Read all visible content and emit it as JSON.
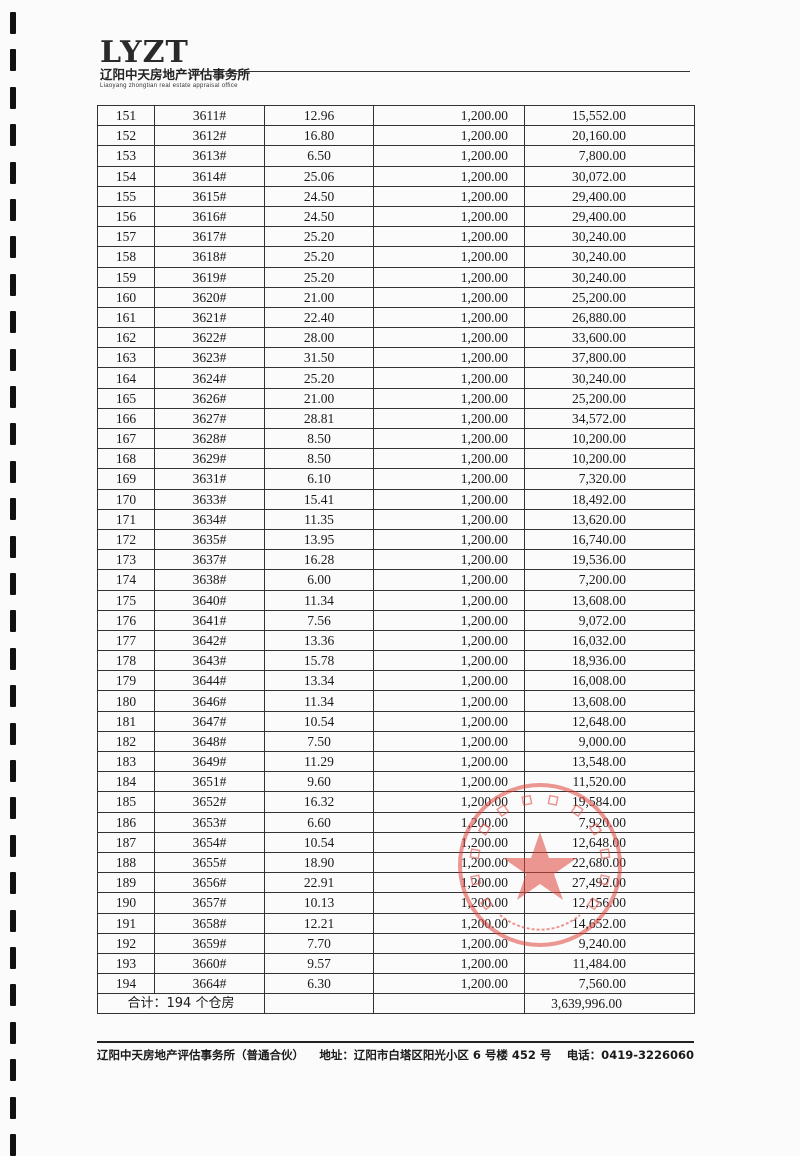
{
  "header": {
    "logo_text": "LYZT",
    "company_cn": "辽阳中天房地产评估事务所",
    "company_en": "Liaoyang zhongtian real estate appraisal office"
  },
  "table": {
    "rows": [
      [
        "151",
        "3611#",
        "12.96",
        "1,200.00",
        "15,552.00"
      ],
      [
        "152",
        "3612#",
        "16.80",
        "1,200.00",
        "20,160.00"
      ],
      [
        "153",
        "3613#",
        "6.50",
        "1,200.00",
        "7,800.00"
      ],
      [
        "154",
        "3614#",
        "25.06",
        "1,200.00",
        "30,072.00"
      ],
      [
        "155",
        "3615#",
        "24.50",
        "1,200.00",
        "29,400.00"
      ],
      [
        "156",
        "3616#",
        "24.50",
        "1,200.00",
        "29,400.00"
      ],
      [
        "157",
        "3617#",
        "25.20",
        "1,200.00",
        "30,240.00"
      ],
      [
        "158",
        "3618#",
        "25.20",
        "1,200.00",
        "30,240.00"
      ],
      [
        "159",
        "3619#",
        "25.20",
        "1,200.00",
        "30,240.00"
      ],
      [
        "160",
        "3620#",
        "21.00",
        "1,200.00",
        "25,200.00"
      ],
      [
        "161",
        "3621#",
        "22.40",
        "1,200.00",
        "26,880.00"
      ],
      [
        "162",
        "3622#",
        "28.00",
        "1,200.00",
        "33,600.00"
      ],
      [
        "163",
        "3623#",
        "31.50",
        "1,200.00",
        "37,800.00"
      ],
      [
        "164",
        "3624#",
        "25.20",
        "1,200.00",
        "30,240.00"
      ],
      [
        "165",
        "3626#",
        "21.00",
        "1,200.00",
        "25,200.00"
      ],
      [
        "166",
        "3627#",
        "28.81",
        "1,200.00",
        "34,572.00"
      ],
      [
        "167",
        "3628#",
        "8.50",
        "1,200.00",
        "10,200.00"
      ],
      [
        "168",
        "3629#",
        "8.50",
        "1,200.00",
        "10,200.00"
      ],
      [
        "169",
        "3631#",
        "6.10",
        "1,200.00",
        "7,320.00"
      ],
      [
        "170",
        "3633#",
        "15.41",
        "1,200.00",
        "18,492.00"
      ],
      [
        "171",
        "3634#",
        "11.35",
        "1,200.00",
        "13,620.00"
      ],
      [
        "172",
        "3635#",
        "13.95",
        "1,200.00",
        "16,740.00"
      ],
      [
        "173",
        "3637#",
        "16.28",
        "1,200.00",
        "19,536.00"
      ],
      [
        "174",
        "3638#",
        "6.00",
        "1,200.00",
        "7,200.00"
      ],
      [
        "175",
        "3640#",
        "11.34",
        "1,200.00",
        "13,608.00"
      ],
      [
        "176",
        "3641#",
        "7.56",
        "1,200.00",
        "9,072.00"
      ],
      [
        "177",
        "3642#",
        "13.36",
        "1,200.00",
        "16,032.00"
      ],
      [
        "178",
        "3643#",
        "15.78",
        "1,200.00",
        "18,936.00"
      ],
      [
        "179",
        "3644#",
        "13.34",
        "1,200.00",
        "16,008.00"
      ],
      [
        "180",
        "3646#",
        "11.34",
        "1,200.00",
        "13,608.00"
      ],
      [
        "181",
        "3647#",
        "10.54",
        "1,200.00",
        "12,648.00"
      ],
      [
        "182",
        "3648#",
        "7.50",
        "1,200.00",
        "9,000.00"
      ],
      [
        "183",
        "3649#",
        "11.29",
        "1,200.00",
        "13,548.00"
      ],
      [
        "184",
        "3651#",
        "9.60",
        "1,200.00",
        "11,520.00"
      ],
      [
        "185",
        "3652#",
        "16.32",
        "1,200.00",
        "19,584.00"
      ],
      [
        "186",
        "3653#",
        "6.60",
        "1,200.00",
        "7,920.00"
      ],
      [
        "187",
        "3654#",
        "10.54",
        "1,200.00",
        "12,648.00"
      ],
      [
        "188",
        "3655#",
        "18.90",
        "1,200.00",
        "22,680.00"
      ],
      [
        "189",
        "3656#",
        "22.91",
        "1,200.00",
        "27,492.00"
      ],
      [
        "190",
        "3657#",
        "10.13",
        "1,200.00",
        "12,156.00"
      ],
      [
        "191",
        "3658#",
        "12.21",
        "1,200.00",
        "14,652.00"
      ],
      [
        "192",
        "3659#",
        "7.70",
        "1,200.00",
        "9,240.00"
      ],
      [
        "193",
        "3660#",
        "9.57",
        "1,200.00",
        "11,484.00"
      ],
      [
        "194",
        "3664#",
        "6.30",
        "1,200.00",
        "7,560.00"
      ]
    ],
    "total_label": "合计：194 个仓房",
    "total_value": "3,639,996.00"
  },
  "stamp": {
    "text": "辽阳中天房地产评估事务所",
    "number": "2110100001860",
    "color": "#e0443c"
  },
  "footer": {
    "company": "辽阳中天房地产评估事务所（普通合伙）",
    "address": "地址：辽阳市白塔区阳光小区 6 号楼 452 号",
    "phone": "电话：0419-3226060"
  }
}
